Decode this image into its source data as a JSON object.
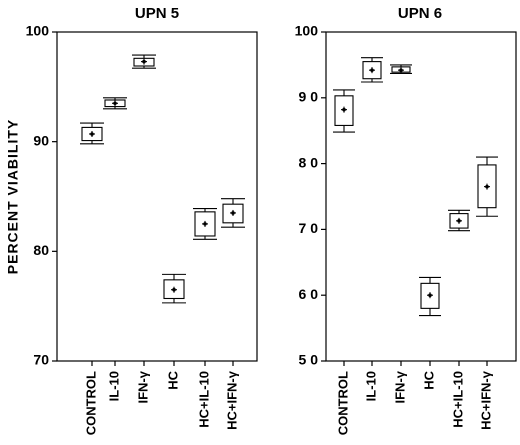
{
  "chart_data": [
    {
      "type": "box",
      "title": "UPN 5",
      "ylabel": "PERCENT VIABILITY",
      "ylim": [
        70,
        100
      ],
      "yticks": [
        70,
        80,
        90,
        100
      ],
      "ytick_labels": [
        "70",
        "80",
        "90",
        "100"
      ],
      "categories": [
        "CONTROL",
        "IL-10",
        "IFN-γ",
        "HC",
        "HC+IL-10",
        "HC+IFN-γ"
      ],
      "boxes": [
        {
          "min": 89.8,
          "q1": 90.1,
          "median": 90.7,
          "q3": 91.3,
          "max": 91.7
        },
        {
          "min": 93.0,
          "q1": 93.2,
          "median": 93.5,
          "q3": 93.8,
          "max": 94.0
        },
        {
          "min": 96.7,
          "q1": 96.9,
          "median": 97.3,
          "q3": 97.6,
          "max": 97.9
        },
        {
          "min": 75.3,
          "q1": 75.7,
          "median": 76.5,
          "q3": 77.4,
          "max": 77.9
        },
        {
          "min": 81.1,
          "q1": 81.4,
          "median": 82.5,
          "q3": 83.6,
          "max": 83.9
        },
        {
          "min": 82.2,
          "q1": 82.6,
          "median": 83.5,
          "q3": 84.3,
          "max": 84.8
        }
      ]
    },
    {
      "type": "box",
      "title": "UPN 6",
      "ylabel": "",
      "ylim": [
        50,
        100
      ],
      "yticks": [
        50,
        60,
        70,
        80,
        90,
        100
      ],
      "ytick_labels": [
        "5 0",
        "6 0",
        "7 0",
        "8 0",
        "9 0",
        "100"
      ],
      "categories": [
        "CONTROL",
        "IL-10",
        "IFN-γ",
        "HC",
        "HC+IL-10",
        "HC+IFN-γ"
      ],
      "boxes": [
        {
          "min": 84.8,
          "q1": 85.8,
          "median": 88.2,
          "q3": 90.3,
          "max": 91.2
        },
        {
          "min": 92.4,
          "q1": 92.9,
          "median": 94.2,
          "q3": 95.5,
          "max": 96.1
        },
        {
          "min": 93.7,
          "q1": 93.9,
          "median": 94.2,
          "q3": 94.7,
          "max": 95.0
        },
        {
          "min": 56.9,
          "q1": 58.0,
          "median": 60.0,
          "q3": 61.8,
          "max": 62.7
        },
        {
          "min": 69.8,
          "q1": 70.2,
          "median": 71.3,
          "q3": 72.4,
          "max": 72.9
        },
        {
          "min": 72.0,
          "q1": 73.3,
          "median": 76.5,
          "q3": 79.8,
          "max": 81.0
        }
      ]
    }
  ]
}
